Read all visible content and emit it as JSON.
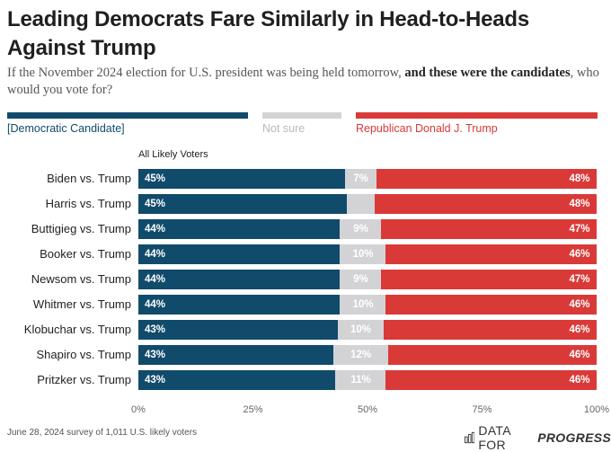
{
  "title": "Leading Democrats Fare Similarly in Head-to-Heads Against Trump",
  "subtitle_start": "If the November 2024 election for U.S. president was being held tomorrow, ",
  "subtitle_bold": "and these were the candidates",
  "subtitle_end": ", who would you vote for?",
  "legend": [
    {
      "label": "[Democratic Candidate]",
      "color": "#114b6b"
    },
    {
      "label": "Not sure",
      "color": "#d3d3d6"
    },
    {
      "label": "Republican Donald J. Trump",
      "color": "#d93a38"
    }
  ],
  "group_label": "All Likely Voters",
  "footer": "June 28, 2024 survey of 1,011 U.S. likely voters",
  "brand": {
    "light": "DATA FOR",
    "bold": "PROGRESS",
    "icon": "bar-chart-icon"
  },
  "chart_data": {
    "type": "bar",
    "orientation": "horizontal-stacked-100",
    "categories": [
      "Biden vs. Trump",
      "Harris vs. Trump",
      "Buttigieg vs. Trump",
      "Booker vs. Trump",
      "Newsom vs. Trump",
      "Whitmer vs. Trump",
      "Klobuchar vs. Trump",
      "Shapiro vs. Trump",
      "Pritzker vs. Trump"
    ],
    "series": [
      {
        "name": "[Democratic Candidate]",
        "color": "#114b6b",
        "values": [
          45,
          45,
          44,
          44,
          44,
          44,
          43,
          43,
          43
        ],
        "labels": [
          "45%",
          "45%",
          "44%",
          "44%",
          "44%",
          "44%",
          "43%",
          "43%",
          "43%"
        ]
      },
      {
        "name": "Not sure",
        "color": "#d3d3d6",
        "values": [
          7,
          6,
          9,
          10,
          9,
          10,
          10,
          12,
          11
        ],
        "labels": [
          "7%",
          "",
          "9%",
          "10%",
          "9%",
          "10%",
          "10%",
          "12%",
          "11%"
        ]
      },
      {
        "name": "Republican Donald J. Trump",
        "color": "#d93a38",
        "values": [
          48,
          48,
          47,
          46,
          47,
          46,
          46,
          46,
          46
        ],
        "labels": [
          "48%",
          "48%",
          "47%",
          "46%",
          "47%",
          "46%",
          "46%",
          "46%",
          "46%"
        ]
      }
    ],
    "xlim": [
      0,
      100
    ],
    "xticks": [
      "0%",
      "25%",
      "50%",
      "75%",
      "100%"
    ],
    "grid": true
  }
}
